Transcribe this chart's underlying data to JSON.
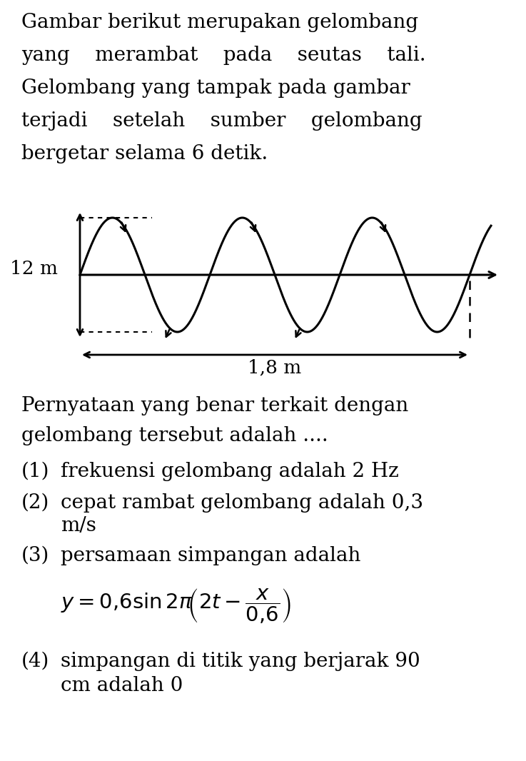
{
  "bg_color": "#ffffff",
  "text_color": "#000000",
  "intro_lines": [
    "Gambar berikut merupakan gelombang",
    "yang    merambat    pada    seutas    tali.",
    "Gelombang yang tampak pada gambar",
    "terjadi    setelah    sumber    gelombang",
    "bergetar selama 6 detik."
  ],
  "wave_label_left": "12 m",
  "wave_label_bottom": "1,8 m",
  "question_line1": "Pernyataan yang benar terkait dengan",
  "question_line2": "gelombang tersebut adalah ....",
  "item1_num": "(1)",
  "item1_text": "frekuensi gelombang adalah 2 Hz",
  "item2_num": "(2)",
  "item2_text1": "cepat rambat gelombang adalah 0,3",
  "item2_text2": "m/s",
  "item3_num": "(3)",
  "item3_text": "persamaan simpangan adalah",
  "item4_num": "(4)",
  "item4_text1": "simpangan di titik yang berjarak 90",
  "item4_text2": "cm adalah 0",
  "font_size_body": 20,
  "font_size_label": 19,
  "font_size_formula": 21
}
